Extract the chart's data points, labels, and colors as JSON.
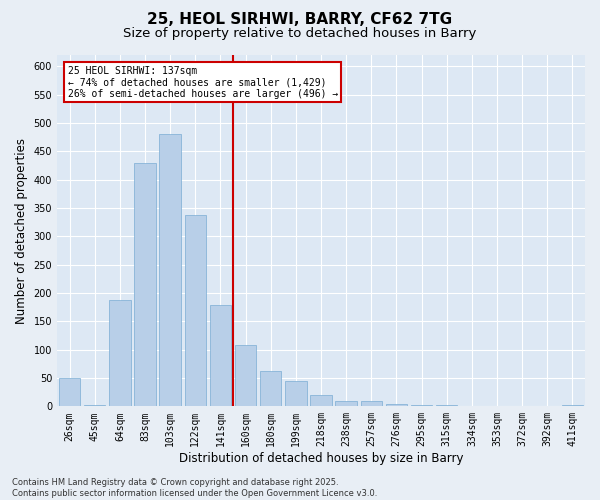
{
  "title_line1": "25, HEOL SIRHWI, BARRY, CF62 7TG",
  "title_line2": "Size of property relative to detached houses in Barry",
  "xlabel": "Distribution of detached houses by size in Barry",
  "ylabel": "Number of detached properties",
  "categories": [
    "26sqm",
    "45sqm",
    "64sqm",
    "83sqm",
    "103sqm",
    "122sqm",
    "141sqm",
    "160sqm",
    "180sqm",
    "199sqm",
    "218sqm",
    "238sqm",
    "257sqm",
    "276sqm",
    "295sqm",
    "315sqm",
    "334sqm",
    "353sqm",
    "372sqm",
    "392sqm",
    "411sqm"
  ],
  "values": [
    50,
    3,
    188,
    430,
    480,
    338,
    178,
    108,
    62,
    45,
    20,
    10,
    10,
    5,
    3,
    2,
    1,
    1,
    0,
    1,
    2
  ],
  "bar_color": "#b8cfe8",
  "bar_edge_color": "#7aadd4",
  "highlight_index": 6,
  "highlight_color": "#cc0000",
  "annotation_line1": "25 HEOL SIRHWI: 137sqm",
  "annotation_line2": "← 74% of detached houses are smaller (1,429)",
  "annotation_line3": "26% of semi-detached houses are larger (496) →",
  "annotation_box_color": "#cc0000",
  "ylim": [
    0,
    620
  ],
  "yticks": [
    0,
    50,
    100,
    150,
    200,
    250,
    300,
    350,
    400,
    450,
    500,
    550,
    600
  ],
  "background_color": "#e8eef5",
  "plot_bg_color": "#dde8f4",
  "footer": "Contains HM Land Registry data © Crown copyright and database right 2025.\nContains public sector information licensed under the Open Government Licence v3.0.",
  "title_fontsize": 11,
  "subtitle_fontsize": 9.5,
  "axis_label_fontsize": 8.5,
  "tick_fontsize": 7,
  "footer_fontsize": 6
}
